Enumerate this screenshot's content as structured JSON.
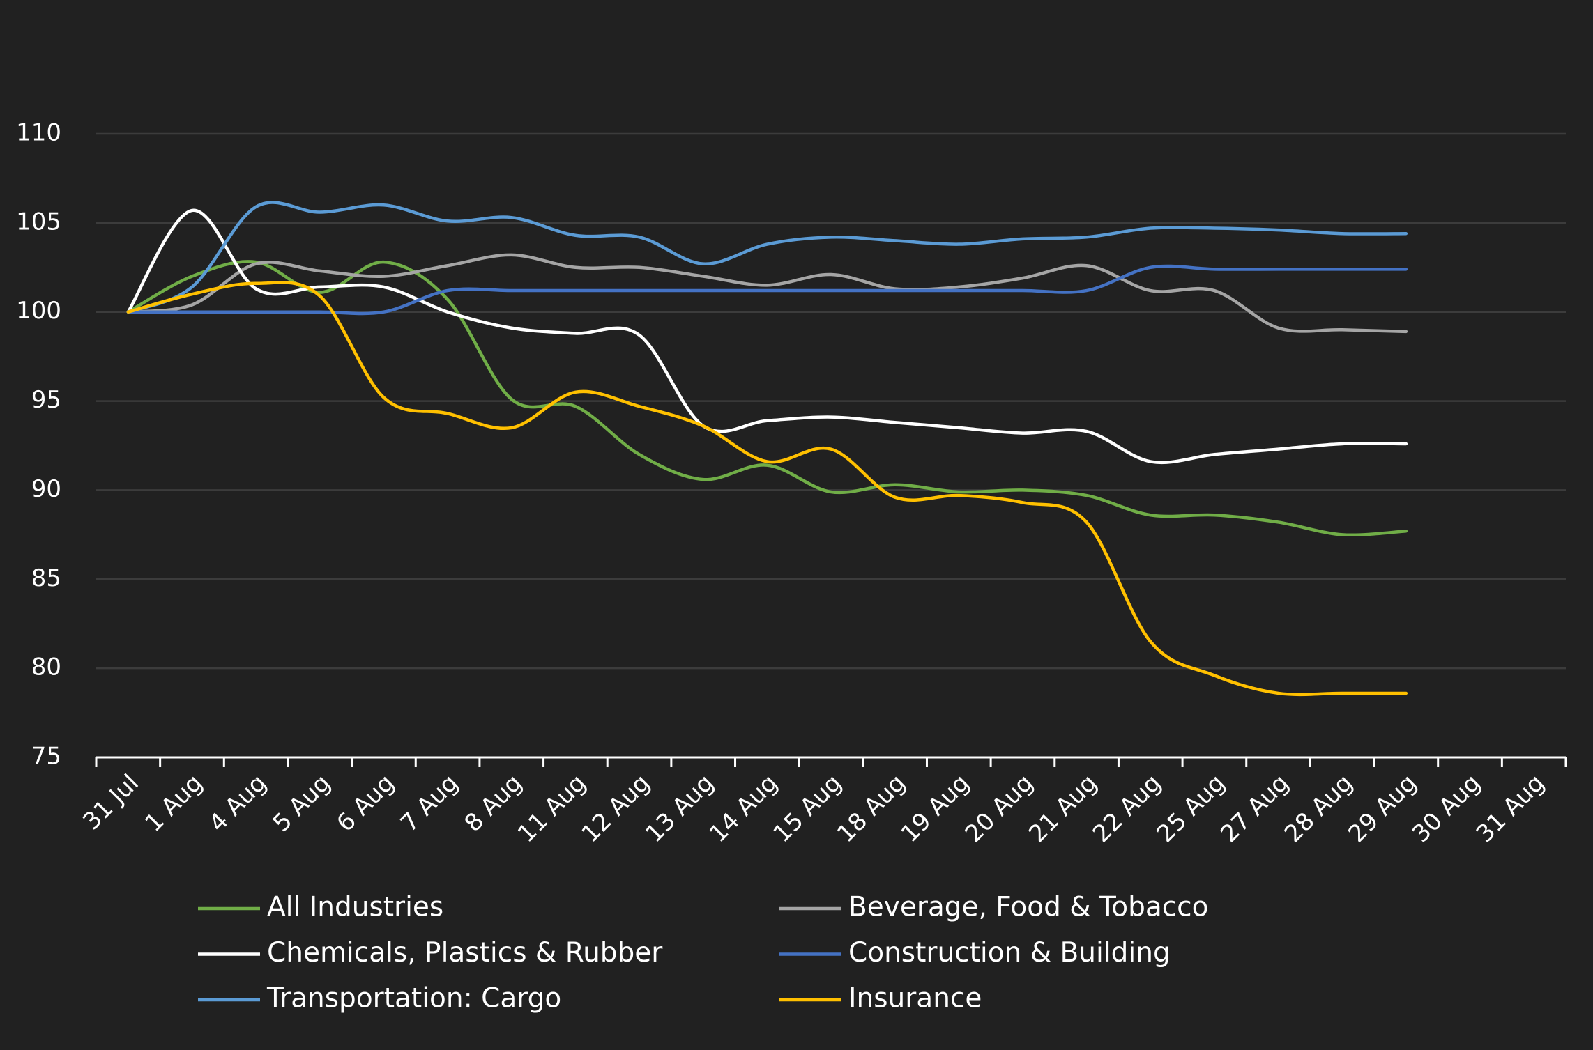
{
  "chart_data": {
    "type": "line",
    "categories": [
      "31 Jul",
      "1 Aug",
      "4 Aug",
      "5 Aug",
      "6 Aug",
      "7 Aug",
      "8 Aug",
      "11 Aug",
      "12 Aug",
      "13 Aug",
      "14 Aug",
      "15 Aug",
      "18 Aug",
      "19 Aug",
      "20 Aug",
      "21 Aug",
      "22 Aug",
      "25 Aug",
      "27 Aug",
      "28 Aug",
      "29 Aug",
      "30 Aug",
      "31 Aug"
    ],
    "ylim": [
      75,
      110
    ],
    "yticks": [
      75,
      80,
      85,
      90,
      95,
      100,
      105,
      110
    ],
    "grid": true,
    "smooth": true,
    "legend": "bottom",
    "series": [
      {
        "name": "All Industries",
        "color": "#70ad47",
        "values": [
          100,
          102.0,
          102.8,
          101.1,
          102.8,
          100.7,
          95.1,
          94.7,
          92.0,
          90.6,
          91.4,
          89.9,
          90.3,
          89.9,
          90.0,
          89.7,
          88.6,
          88.6,
          88.2,
          87.5,
          87.7,
          null,
          null
        ]
      },
      {
        "name": "Beverage, Food & Tobacco",
        "color": "#a5a5a5",
        "values": [
          100,
          100.4,
          102.7,
          102.3,
          102.0,
          102.6,
          103.2,
          102.5,
          102.5,
          102.0,
          101.5,
          102.1,
          101.3,
          101.4,
          101.9,
          102.6,
          101.2,
          101.2,
          99.1,
          99.0,
          98.9,
          null,
          null
        ]
      },
      {
        "name": "Chemicals, Plastics & Rubber",
        "color": "#ffffff",
        "values": [
          100,
          105.7,
          101.3,
          101.4,
          101.4,
          100.0,
          99.1,
          98.8,
          98.7,
          93.6,
          93.9,
          94.1,
          93.8,
          93.5,
          93.2,
          93.3,
          91.6,
          92.0,
          92.3,
          92.6,
          92.6,
          null,
          null
        ]
      },
      {
        "name": "Construction & Building",
        "color": "#4472c4",
        "values": [
          100,
          100,
          100,
          100,
          100,
          101.2,
          101.2,
          101.2,
          101.2,
          101.2,
          101.2,
          101.2,
          101.2,
          101.2,
          101.2,
          101.2,
          102.5,
          102.4,
          102.4,
          102.4,
          102.4,
          null,
          null
        ]
      },
      {
        "name": "Transportation: Cargo",
        "color": "#5b9bd5",
        "values": [
          100,
          101.4,
          105.9,
          105.6,
          106.0,
          105.1,
          105.3,
          104.3,
          104.2,
          102.7,
          103.8,
          104.2,
          104.0,
          103.8,
          104.1,
          104.2,
          104.7,
          104.7,
          104.6,
          104.4,
          104.4,
          null,
          null
        ]
      },
      {
        "name": "Insurance",
        "color": "#ffc000",
        "values": [
          100,
          101.0,
          101.6,
          100.9,
          95.2,
          94.3,
          93.5,
          95.5,
          94.7,
          93.6,
          91.6,
          92.3,
          89.6,
          89.7,
          89.3,
          88.2,
          81.5,
          79.6,
          78.6,
          78.6,
          78.6,
          null,
          null
        ]
      }
    ]
  }
}
